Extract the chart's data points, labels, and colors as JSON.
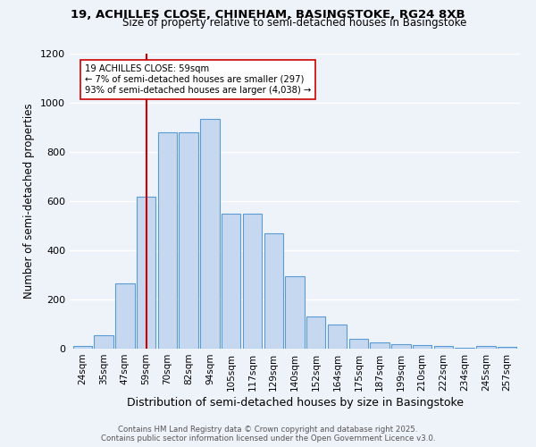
{
  "title1": "19, ACHILLES CLOSE, CHINEHAM, BASINGSTOKE, RG24 8XB",
  "title2": "Size of property relative to semi-detached houses in Basingstoke",
  "xlabel": "Distribution of semi-detached houses by size in Basingstoke",
  "ylabel": "Number of semi-detached properties",
  "categories": [
    "24sqm",
    "35sqm",
    "47sqm",
    "59sqm",
    "70sqm",
    "82sqm",
    "94sqm",
    "105sqm",
    "117sqm",
    "129sqm",
    "140sqm",
    "152sqm",
    "164sqm",
    "175sqm",
    "187sqm",
    "199sqm",
    "210sqm",
    "222sqm",
    "234sqm",
    "245sqm",
    "257sqm"
  ],
  "values": [
    10,
    55,
    265,
    620,
    880,
    880,
    935,
    550,
    550,
    470,
    295,
    130,
    100,
    40,
    25,
    20,
    15,
    10,
    5,
    10,
    8
  ],
  "bar_color": "#c5d8f0",
  "bar_edge_color": "#5b9bd5",
  "vline_x_index": 3,
  "vline_color": "#cc0000",
  "annotation_text": "19 ACHILLES CLOSE: 59sqm\n← 7% of semi-detached houses are smaller (297)\n93% of semi-detached houses are larger (4,038) →",
  "annotation_box_color": "white",
  "annotation_box_edge": "#cc0000",
  "ylim": [
    0,
    1200
  ],
  "yticks": [
    0,
    200,
    400,
    600,
    800,
    1000,
    1200
  ],
  "footer1": "Contains HM Land Registry data © Crown copyright and database right 2025.",
  "footer2": "Contains public sector information licensed under the Open Government Licence v3.0.",
  "bg_color": "#eef2f9",
  "grid_color": "white"
}
